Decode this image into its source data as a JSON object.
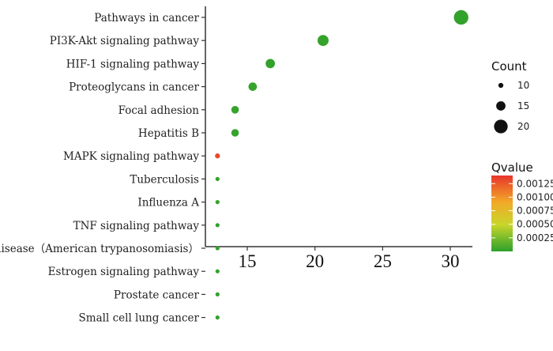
{
  "chart_data": {
    "type": "scatter",
    "title": "",
    "xlabel": "",
    "ylabel": "",
    "xlim": [
      12.5,
      32
    ],
    "xticks": [
      15,
      20,
      25,
      30
    ],
    "categories": [
      "Pathways in cancer",
      "PI3K-Akt signaling pathway",
      "HIF-1 signaling pathway",
      "Proteoglycans in cancer",
      "Focal adhesion",
      "Hepatitis B",
      "MAPK signaling pathway",
      "Tuberculosis",
      "Influenza A",
      "TNF signaling pathway",
      "Chagas disease（American trypanosomiasis）",
      "Estrogen signaling pathway",
      "Prostate cancer",
      "Small cell lung cancer"
    ],
    "points": [
      {
        "category": "Pathways in cancer",
        "x": 30.8,
        "count": 21,
        "qvalue": 2e-05
      },
      {
        "category": "PI3K-Akt signaling pathway",
        "x": 20.6,
        "count": 17,
        "qvalue": 3e-05
      },
      {
        "category": "HIF-1 signaling pathway",
        "x": 16.7,
        "count": 15,
        "qvalue": 2e-05
      },
      {
        "category": "Proteoglycans in cancer",
        "x": 15.4,
        "count": 14,
        "qvalue": 3e-05
      },
      {
        "category": "Focal adhesion",
        "x": 14.1,
        "count": 13,
        "qvalue": 3e-05
      },
      {
        "category": "Hepatitis B",
        "x": 14.1,
        "count": 13,
        "qvalue": 3e-05
      },
      {
        "category": "MAPK signaling pathway",
        "x": 12.8,
        "count": 10,
        "qvalue": 0.00132
      },
      {
        "category": "Tuberculosis",
        "x": 12.8,
        "count": 9,
        "qvalue": 3e-05
      },
      {
        "category": "Influenza A",
        "x": 12.8,
        "count": 9,
        "qvalue": 3e-05
      },
      {
        "category": "TNF signaling pathway",
        "x": 12.8,
        "count": 9,
        "qvalue": 2e-05
      },
      {
        "category": "Chagas disease（American trypanosomiasis）",
        "x": 12.8,
        "count": 9,
        "qvalue": 2e-05
      },
      {
        "category": "Estrogen signaling pathway",
        "x": 12.8,
        "count": 9,
        "qvalue": 2e-05
      },
      {
        "category": "Prostate cancer",
        "x": 12.8,
        "count": 9,
        "qvalue": 2e-05
      },
      {
        "category": "Small cell lung cancer",
        "x": 12.8,
        "count": 9,
        "qvalue": 2e-05
      }
    ],
    "legend_count": {
      "title": "Count",
      "values": [
        10,
        15,
        20
      ],
      "labels": [
        "10",
        "15",
        "20"
      ],
      "placement": "right-top"
    },
    "legend_qvalue": {
      "title": "Qvalue",
      "range": [
        0,
        0.0014
      ],
      "ticks": [
        0.00025,
        0.0005,
        0.00075,
        0.001,
        0.00125
      ],
      "tick_labels": [
        "0.00025",
        "0.00050",
        "0.00075",
        "0.00100",
        "0.00125"
      ],
      "colors": [
        "#2ca02c",
        "#c8d62a",
        "#f2a928",
        "#e8352c"
      ],
      "placement": "right-middle"
    }
  }
}
